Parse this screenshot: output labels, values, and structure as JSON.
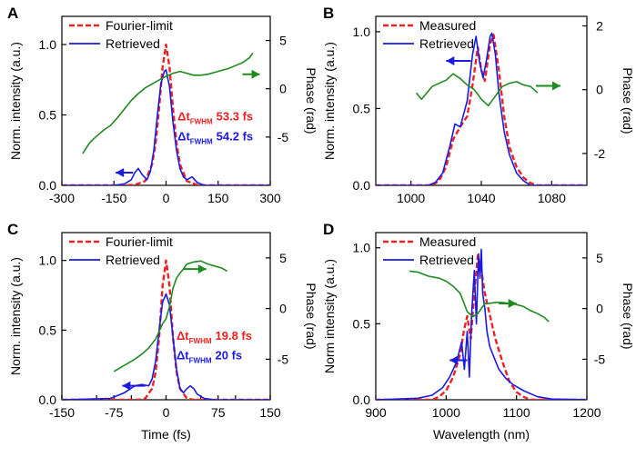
{
  "figure": {
    "shared_ylabel_left": "Norm. intensity (a.u.)",
    "shared_ylabel_left_d": "Norm intensity (a.u.)",
    "shared_ylabel_right": "Phase (rad)"
  },
  "colors": {
    "red": "#ee2222",
    "blue": "#1a1ae6",
    "green": "#1f8a1f",
    "axis": "#000000"
  },
  "chart_data": [
    {
      "id": "A",
      "type": "line",
      "panel_label": "A",
      "xlabel": "",
      "ylabel": "Norm. intensity (a.u.)",
      "y2label": "Phase (rad)",
      "xlim": [
        -300,
        300
      ],
      "ylim": [
        0,
        1.2
      ],
      "y2lim": [
        -10,
        7.5
      ],
      "xticks": [
        -300,
        -150,
        0,
        150,
        300
      ],
      "xtick_labels": [
        "-300",
        "-150",
        "0",
        "150",
        "300"
      ],
      "yticks": [
        0,
        0.5,
        1.0
      ],
      "ytick_labels": [
        "0.0",
        "0.5",
        "1.0"
      ],
      "y2ticks": [
        -5,
        0,
        5
      ],
      "y2tick_labels": [
        "-5",
        "0",
        "5"
      ],
      "legend": [
        "Fourier-limit",
        "Retrieved"
      ],
      "annotations": [
        {
          "prefix": "Δt",
          "sub": "FWHM",
          "value": "53.3 fs",
          "color": "red",
          "x": 33,
          "y": 0.46
        },
        {
          "prefix": "Δt",
          "sub": "FWHM",
          "value": "54.2 fs",
          "color": "blue",
          "x": 33,
          "y": 0.32
        }
      ],
      "arrows": [
        {
          "axis": "left",
          "x1": -95,
          "x2": -145,
          "y": 0.09,
          "color": "blue"
        },
        {
          "axis": "right",
          "x1": 220,
          "x2": 270,
          "y": 1.5,
          "color": "green"
        }
      ],
      "series": [
        {
          "name": "Fourier-limit",
          "axis": "left",
          "style": "dashed",
          "color": "red",
          "x": [
            -300,
            -120,
            -90,
            -60,
            -40,
            -30,
            -20,
            -10,
            0,
            10,
            20,
            30,
            40,
            60,
            90,
            120,
            300
          ],
          "y": [
            0,
            0,
            0.003,
            0.03,
            0.15,
            0.3,
            0.55,
            0.84,
            1.0,
            0.84,
            0.55,
            0.3,
            0.15,
            0.03,
            0.003,
            0,
            0
          ]
        },
        {
          "name": "Retrieved",
          "axis": "left",
          "style": "solid",
          "color": "blue",
          "x": [
            -300,
            -150,
            -120,
            -100,
            -90,
            -80,
            -70,
            -55,
            -45,
            -35,
            -25,
            -15,
            -5,
            0,
            10,
            20,
            30,
            40,
            50,
            60,
            75,
            90,
            110,
            300
          ],
          "y": [
            0,
            0,
            0.01,
            0.04,
            0.09,
            0.12,
            0.08,
            0.04,
            0.1,
            0.25,
            0.5,
            0.72,
            0.81,
            0.82,
            0.7,
            0.45,
            0.25,
            0.12,
            0.06,
            0.04,
            0.06,
            0.02,
            0,
            0
          ]
        },
        {
          "name": "Phase",
          "axis": "right",
          "style": "solid",
          "color": "green",
          "x": [
            -240,
            -220,
            -200,
            -180,
            -160,
            -140,
            -120,
            -100,
            -80,
            -60,
            -40,
            -20,
            0,
            20,
            40,
            60,
            80,
            100,
            120,
            140,
            160,
            180,
            200,
            220,
            240,
            250
          ],
          "y": [
            -6.7,
            -5.6,
            -4.9,
            -4.3,
            -3.8,
            -3.0,
            -2.1,
            -1.2,
            -0.5,
            0.1,
            0.5,
            0.9,
            1.3,
            1.6,
            1.8,
            1.6,
            1.4,
            1.4,
            1.5,
            1.7,
            1.9,
            2.1,
            2.4,
            2.7,
            3.2,
            3.7
          ]
        }
      ]
    },
    {
      "id": "B",
      "type": "line",
      "panel_label": "B",
      "xlabel": "",
      "ylabel": "Norm. intensity (a.u.)",
      "y2label": "Phase (rad)",
      "xlim": [
        980,
        1100
      ],
      "ylim": [
        0,
        1.1
      ],
      "y2lim": [
        -3,
        2.3
      ],
      "xticks": [
        1000,
        1040,
        1080
      ],
      "xtick_labels": [
        "1000",
        "1040",
        "1080"
      ],
      "yticks": [
        0,
        0.5,
        1.0
      ],
      "ytick_labels": [
        "0.0",
        "0.5",
        "1.0"
      ],
      "y2ticks": [
        -2,
        0,
        2
      ],
      "y2tick_labels": [
        "-2",
        "0",
        "2"
      ],
      "legend": [
        "Measured",
        "Retrieved"
      ],
      "annotations": [],
      "arrows": [
        {
          "axis": "left",
          "x1": 1034,
          "x2": 1020,
          "y": 0.81,
          "color": "blue"
        },
        {
          "axis": "right",
          "x1": 1071,
          "x2": 1085,
          "y": 0.12,
          "color": "green"
        }
      ],
      "series": [
        {
          "name": "Measured",
          "axis": "left",
          "style": "dashed",
          "color": "red",
          "x": [
            980,
            1012,
            1016,
            1020,
            1024,
            1028,
            1032,
            1035,
            1038,
            1040,
            1042,
            1045,
            1047,
            1050,
            1053,
            1056,
            1060,
            1064,
            1068,
            1072,
            1100
          ],
          "y": [
            0,
            0,
            0.03,
            0.12,
            0.3,
            0.38,
            0.45,
            0.65,
            0.9,
            0.75,
            0.68,
            0.92,
            0.98,
            0.75,
            0.45,
            0.25,
            0.12,
            0.05,
            0.015,
            0,
            0
          ]
        },
        {
          "name": "Retrieved",
          "axis": "left",
          "style": "solid",
          "color": "blue",
          "x": [
            980,
            1010,
            1014,
            1018,
            1022,
            1025,
            1028,
            1032,
            1035,
            1037,
            1039,
            1041,
            1043,
            1045,
            1046,
            1048,
            1050,
            1053,
            1056,
            1060,
            1064,
            1068,
            1100
          ],
          "y": [
            0,
            0,
            0.02,
            0.08,
            0.25,
            0.4,
            0.38,
            0.55,
            0.85,
            0.97,
            0.8,
            0.7,
            0.82,
            0.97,
            0.99,
            0.85,
            0.6,
            0.35,
            0.2,
            0.08,
            0.03,
            0,
            0
          ]
        },
        {
          "name": "Phase",
          "axis": "right",
          "style": "solid",
          "color": "green",
          "x": [
            1003,
            1006,
            1009,
            1012,
            1016,
            1020,
            1024,
            1028,
            1032,
            1036,
            1040,
            1044,
            1048,
            1052,
            1056,
            1060,
            1064,
            1068,
            1072
          ],
          "y": [
            -0.1,
            -0.3,
            -0.1,
            0.1,
            0.2,
            0.3,
            0.5,
            0.35,
            0.15,
            0.0,
            -0.3,
            -0.5,
            -0.2,
            0.1,
            0.2,
            0.25,
            0.15,
            0.1,
            -0.1
          ]
        }
      ]
    },
    {
      "id": "C",
      "type": "line",
      "panel_label": "C",
      "xlabel": "Time (fs)",
      "ylabel": "Norm. intensity (a.u.)",
      "y2label": "Phase (rad)",
      "xlim": [
        -150,
        150
      ],
      "ylim": [
        0,
        1.2
      ],
      "y2lim": [
        -9,
        7.5
      ],
      "xticks": [
        -150,
        -100,
        -50,
        0,
        50,
        100,
        150
      ],
      "xtick_labels": [
        "-150",
        "-75",
        "0",
        "75",
        "150"
      ],
      "xtick_label_values": [
        -150,
        -75,
        0,
        75,
        150
      ],
      "yticks": [
        0,
        0.5,
        1.0
      ],
      "ytick_labels": [
        "0.0",
        "0.5",
        "1.0"
      ],
      "y2ticks": [
        -5,
        0,
        5
      ],
      "y2tick_labels": [
        "-5",
        "0",
        "5"
      ],
      "legend": [
        "Fourier-limit",
        "Retrieved"
      ],
      "annotations": [
        {
          "prefix": "Δt",
          "sub": "FWHM",
          "value": "19.8 fs",
          "color": "red",
          "x": 15,
          "y": 0.43
        },
        {
          "prefix": "Δt",
          "sub": "FWHM",
          "value": "20 fs",
          "color": "blue",
          "x": 15,
          "y": 0.29
        }
      ],
      "arrows": [
        {
          "axis": "left",
          "x1": -30,
          "x2": -63,
          "y": 0.1,
          "color": "blue"
        },
        {
          "axis": "right",
          "x1": 25,
          "x2": 58,
          "y": 3.9,
          "color": "green"
        }
      ],
      "series": [
        {
          "name": "Fourier-limit",
          "axis": "left",
          "style": "dashed",
          "color": "red",
          "x": [
            -150,
            -40,
            -30,
            -20,
            -15,
            -10,
            -5,
            0,
            5,
            10,
            15,
            20,
            30,
            40,
            150
          ],
          "y": [
            0,
            0,
            0.01,
            0.08,
            0.2,
            0.45,
            0.82,
            1.0,
            0.82,
            0.45,
            0.2,
            0.08,
            0.01,
            0,
            0
          ]
        },
        {
          "name": "Retrieved",
          "axis": "left",
          "style": "solid",
          "color": "blue",
          "x": [
            -150,
            -80,
            -60,
            -45,
            -35,
            -25,
            -20,
            -15,
            -10,
            -5,
            0,
            5,
            10,
            15,
            20,
            25,
            30,
            35,
            40,
            45,
            55,
            70,
            150
          ],
          "y": [
            0,
            0.01,
            0.05,
            0.1,
            0.11,
            0.1,
            0.15,
            0.28,
            0.5,
            0.7,
            0.76,
            0.68,
            0.45,
            0.22,
            0.08,
            0.05,
            0.08,
            0.1,
            0.08,
            0.04,
            0.01,
            0,
            0
          ]
        },
        {
          "name": "Phase",
          "axis": "right",
          "style": "solid",
          "color": "green",
          "x": [
            -75,
            -65,
            -55,
            -45,
            -35,
            -25,
            -15,
            -5,
            0,
            5,
            10,
            15,
            20,
            25,
            30,
            40,
            50,
            60,
            70,
            80,
            88
          ],
          "y": [
            -6.2,
            -5.8,
            -5.4,
            -5.0,
            -4.5,
            -3.9,
            -3.0,
            -1.5,
            -1.0,
            0.2,
            2.0,
            3.0,
            3.5,
            3.9,
            4.4,
            4.6,
            4.7,
            4.4,
            4.2,
            4.0,
            3.7
          ]
        }
      ]
    },
    {
      "id": "D",
      "type": "line",
      "panel_label": "D",
      "xlabel": "Wavelength (nm)",
      "ylabel": "Norm intensity (a.u.)",
      "y2label": "Phase (rad)",
      "xlim": [
        900,
        1200
      ],
      "ylim": [
        0,
        1.1
      ],
      "y2lim": [
        -9,
        7.5
      ],
      "xticks": [
        900,
        1000,
        1100,
        1200
      ],
      "xtick_labels": [
        "900",
        "1000",
        "1100",
        "1200"
      ],
      "yticks": [
        0,
        0.5,
        1.0
      ],
      "ytick_labels": [
        "0.0",
        "0.5",
        "1.0"
      ],
      "y2ticks": [
        -5,
        0,
        5
      ],
      "y2tick_labels": [
        "-5",
        "0",
        "5"
      ],
      "legend": [
        "Measured",
        "Retrieved"
      ],
      "annotations": [],
      "arrows": [
        {
          "axis": "left",
          "x1": 1030,
          "x2": 1005,
          "y": 0.26,
          "color": "blue"
        },
        {
          "axis": "right",
          "x1": 1075,
          "x2": 1100,
          "y": 0.5,
          "color": "green"
        }
      ],
      "series": [
        {
          "name": "Measured",
          "axis": "left",
          "style": "dashed",
          "color": "red",
          "x": [
            900,
            980,
            990,
            1000,
            1010,
            1020,
            1025,
            1030,
            1035,
            1040,
            1045,
            1050,
            1055,
            1060,
            1070,
            1080,
            1090,
            1100,
            1110,
            1120,
            1200
          ],
          "y": [
            0,
            0,
            0.02,
            0.06,
            0.15,
            0.3,
            0.45,
            0.55,
            0.4,
            0.7,
            0.95,
            0.85,
            0.7,
            0.6,
            0.4,
            0.25,
            0.12,
            0.05,
            0.02,
            0,
            0
          ]
        },
        {
          "name": "Retrieved",
          "axis": "left",
          "style": "solid",
          "color": "blue",
          "x": [
            900,
            960,
            980,
            995,
            1005,
            1015,
            1022,
            1026,
            1030,
            1033,
            1036,
            1040,
            1043,
            1046,
            1048,
            1050,
            1052,
            1055,
            1058,
            1062,
            1068,
            1075,
            1085,
            1095,
            1110,
            1130,
            1150,
            1200
          ],
          "y": [
            0,
            0.01,
            0.03,
            0.08,
            0.15,
            0.25,
            0.38,
            0.2,
            0.45,
            0.15,
            0.55,
            0.85,
            0.5,
            0.96,
            0.8,
            0.99,
            0.7,
            0.6,
            0.45,
            0.35,
            0.28,
            0.2,
            0.14,
            0.1,
            0.06,
            0.02,
            0.005,
            0
          ]
        },
        {
          "name": "Phase",
          "axis": "right",
          "style": "solid",
          "color": "green",
          "x": [
            948,
            960,
            975,
            990,
            1000,
            1010,
            1020,
            1030,
            1038,
            1045,
            1050,
            1055,
            1060,
            1070,
            1080,
            1090,
            1100,
            1110,
            1120,
            1130,
            1140,
            1146
          ],
          "y": [
            3.7,
            3.6,
            3.2,
            3.0,
            2.7,
            2.2,
            1.5,
            -0.3,
            -0.8,
            -0.5,
            0.0,
            0.5,
            0.5,
            0.6,
            0.6,
            0.5,
            0.4,
            0.2,
            -0.2,
            -0.5,
            -0.9,
            -1.3
          ]
        }
      ]
    }
  ]
}
